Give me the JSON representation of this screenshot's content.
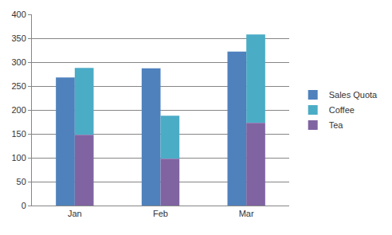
{
  "chart_data": {
    "type": "bar",
    "categories": [
      "Jan",
      "Feb",
      "Mar"
    ],
    "series": [
      {
        "name": "Sales Quota",
        "color": "#4f81bd",
        "stacked": false,
        "values": [
          268,
          287,
          322
        ]
      },
      {
        "name": "Coffee",
        "color": "#4bacc6",
        "stacked": true,
        "values": [
          140,
          90,
          185
        ]
      },
      {
        "name": "Tea",
        "color": "#8064a2",
        "stacked": true,
        "values": [
          148,
          98,
          173
        ]
      }
    ],
    "ylim": [
      0,
      400
    ],
    "yticks": [
      0,
      50,
      100,
      150,
      200,
      250,
      300,
      350,
      400
    ],
    "grid": true,
    "legend": "right"
  }
}
